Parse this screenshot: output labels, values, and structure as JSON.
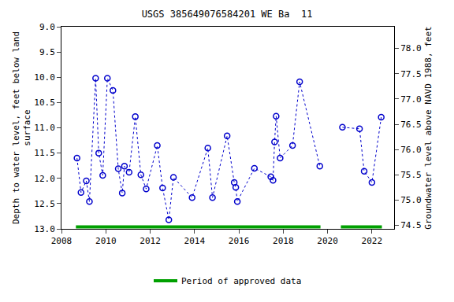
{
  "chart_data": {
    "type": "line",
    "title": "USGS 385649076584201 WE Ba  11",
    "ylabel": "Depth to water level, feet below land surface",
    "y2label": "Groundwater level above NAVD 1988, feet",
    "xlim": [
      2008,
      2023
    ],
    "xticks": [
      2008,
      2010,
      2012,
      2014,
      2016,
      2018,
      2020,
      2022
    ],
    "ylim": [
      13.0,
      9.0
    ],
    "yticks": [
      {
        "value": 9,
        "label": "9.0"
      },
      {
        "value": 9.5,
        "label": "9.5"
      },
      {
        "value": 10,
        "label": "10.0"
      },
      {
        "value": 10.5,
        "label": "10.5"
      },
      {
        "value": 11,
        "label": "11.0"
      },
      {
        "value": 11.5,
        "label": "11.5"
      },
      {
        "value": 12,
        "label": "12.0"
      },
      {
        "value": 12.5,
        "label": "12.5"
      },
      {
        "value": 13,
        "label": "13.0"
      }
    ],
    "y2lim": [
      74.43,
      78.43
    ],
    "y2ticks": [
      {
        "value": 74.5,
        "label": "74.5"
      },
      {
        "value": 75,
        "label": "75.0"
      },
      {
        "value": 75.5,
        "label": "75.5"
      },
      {
        "value": 76,
        "label": "76.0"
      },
      {
        "value": 76.5,
        "label": "76.5"
      },
      {
        "value": 77,
        "label": "77.0"
      },
      {
        "value": 77.5,
        "label": "77.5"
      },
      {
        "value": 78,
        "label": "78.0"
      }
    ],
    "grid": false,
    "x": [
      2008.7,
      2008.88,
      2009.12,
      2009.26,
      2009.54,
      2009.68,
      2009.86,
      2010.07,
      2010.32,
      2010.56,
      2010.74,
      2010.84,
      2011.05,
      2011.33,
      2011.58,
      2011.82,
      2012.32,
      2012.56,
      2012.84,
      2013.05,
      2013.89,
      2014.6,
      2014.81,
      2015.47,
      2015.79,
      2015.86,
      2015.93,
      2016.7,
      2017.44,
      2017.54,
      2017.61,
      2017.68,
      2017.86,
      2018.42,
      2018.74,
      2019.65,
      2020.1,
      2020.67,
      2021.44,
      2021.65,
      2022.0,
      2022.42
    ],
    "series": [
      {
        "name": "Depth to water level",
        "color": "#0000cc",
        "marker": "circle-open",
        "line_style": "dot",
        "values": [
          11.6,
          12.28,
          12.05,
          12.46,
          10.02,
          11.5,
          11.94,
          10.02,
          10.26,
          11.81,
          12.29,
          11.76,
          11.88,
          10.78,
          11.93,
          12.21,
          11.35,
          12.19,
          12.82,
          11.98,
          12.38,
          11.4,
          12.38,
          11.16,
          12.08,
          12.18,
          12.46,
          11.8,
          11.97,
          12.04,
          11.28,
          10.77,
          11.6,
          11.35,
          10.09,
          11.76,
          null,
          10.99,
          11.02,
          11.86,
          12.08,
          10.79
        ]
      }
    ],
    "approved_periods": {
      "name": "Period of approved data",
      "color": "#00a000",
      "ranges": [
        [
          2008.65,
          2019.68
        ],
        [
          2020.6,
          2022.45
        ]
      ]
    }
  }
}
